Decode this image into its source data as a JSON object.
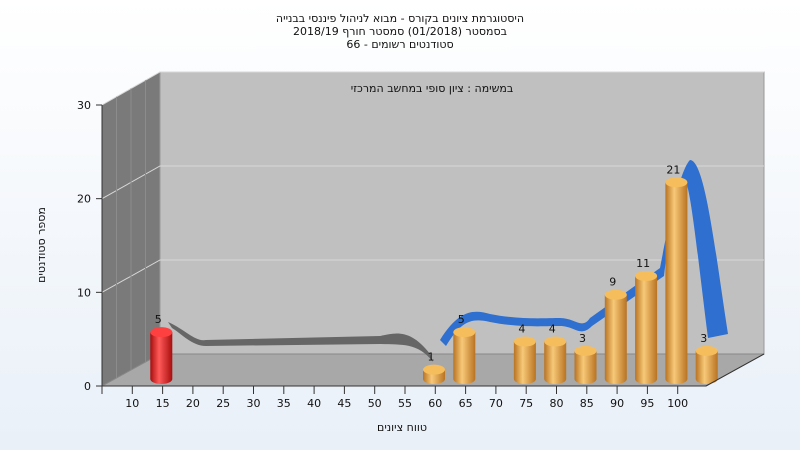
{
  "chart_data": {
    "type": "bar",
    "title_lines": [
      "היסטוגרמת ציונים בקורס - מבוא לניהול פיננסי בבנייה",
      "בסמסטר  (01/2018)  סמסטר חורף  2018/19",
      "סטודנטים רשומים - 66"
    ],
    "annotation": "במשימה : ציון סופי במחשב המרכזי",
    "xlabel": "טווח ציונים",
    "ylabel": "מספר סטודנטים",
    "categories": [
      "10",
      "15",
      "20",
      "25",
      "30",
      "35",
      "40",
      "45",
      "50",
      "55",
      "60",
      "65",
      "70",
      "75",
      "80",
      "85",
      "90",
      "95",
      "100"
    ],
    "values": [
      5,
      0,
      0,
      0,
      0,
      0,
      0,
      0,
      0,
      1,
      5,
      0,
      4,
      4,
      3,
      9,
      11,
      21,
      3
    ],
    "ylim": [
      0,
      30
    ],
    "yticks": [
      0,
      10,
      20,
      30
    ],
    "grid": true,
    "legend": "none",
    "colors": {
      "highlight_bar": "#e01818",
      "bar": "#e8a540",
      "plot_back": "#c0c0c0",
      "plot_side": "#7a7a7a",
      "floor": "#a8a8a8",
      "curve_gray": "#666666",
      "curve_blue": "#2f6fcf"
    },
    "highlight_index": 0
  }
}
